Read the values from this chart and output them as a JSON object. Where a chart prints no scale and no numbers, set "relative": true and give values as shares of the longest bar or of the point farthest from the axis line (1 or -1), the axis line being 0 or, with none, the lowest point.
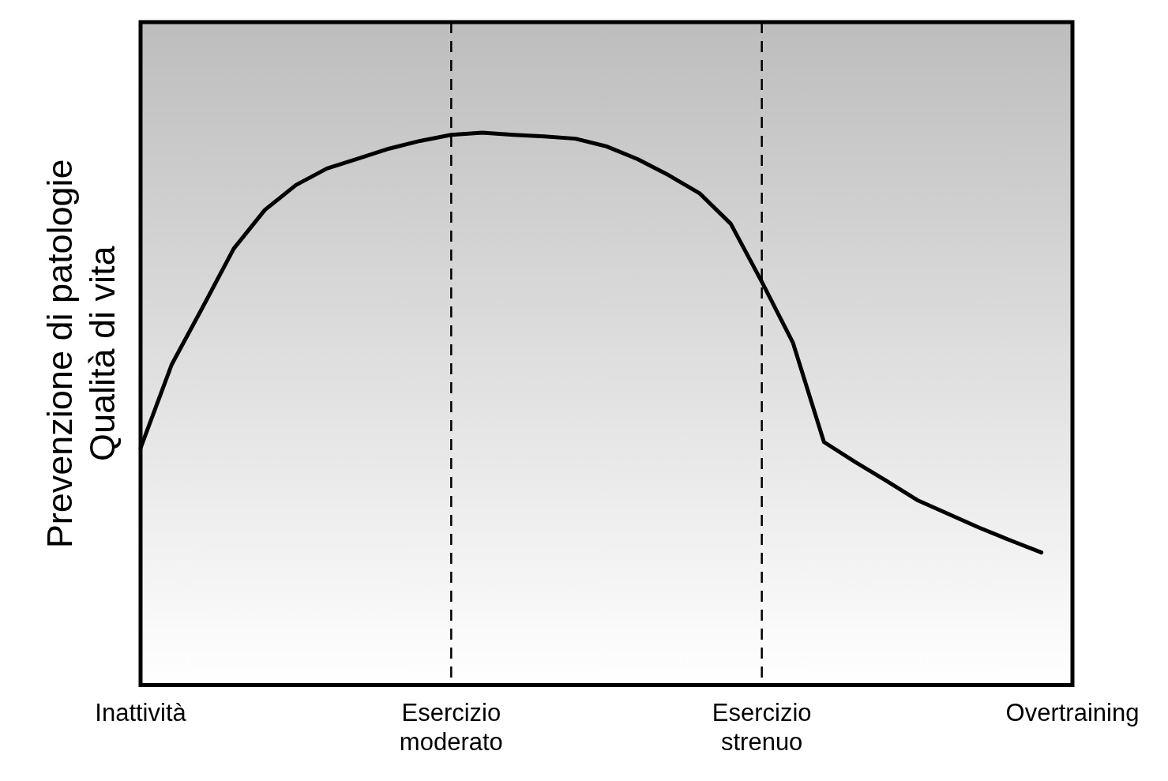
{
  "chart_data": {
    "type": "line",
    "relative": true,
    "ylabel": "Prevenzione di patologie\nQualità di vita",
    "categories": [
      "Inattività",
      null,
      null,
      null,
      null,
      null,
      null,
      null,
      null,
      null,
      "Esercizio\nmoderato",
      null,
      null,
      null,
      null,
      null,
      null,
      null,
      null,
      null,
      "Esercizio\nstrenuo",
      null,
      null,
      null,
      null,
      null,
      null,
      null,
      null,
      null,
      "Overtraining"
    ],
    "series": [
      {
        "color": "#000000",
        "values": [
          0.429,
          0.58,
          0.684,
          0.79,
          0.86,
          0.905,
          0.935,
          0.953,
          0.971,
          0.985,
          0.996,
          1,
          0.996,
          0.993,
          0.989,
          0.975,
          0.952,
          0.923,
          0.89,
          0.835,
          0.73,
          0.62,
          0.44,
          0.404,
          0.37,
          0.335,
          0.31,
          0.285,
          0.262,
          0.24,
          null
        ]
      }
    ],
    "ref_lines": [
      {
        "axis": "x",
        "value": "Esercizio\nmoderato",
        "color": "#000000",
        "line_style": "dashed"
      },
      {
        "axis": "x",
        "value": "Esercizio\nstrenuo",
        "color": "#000000",
        "line_style": "dashed"
      }
    ],
    "grid": false,
    "legend": false,
    "marker": "none",
    "line_style": "solid"
  }
}
